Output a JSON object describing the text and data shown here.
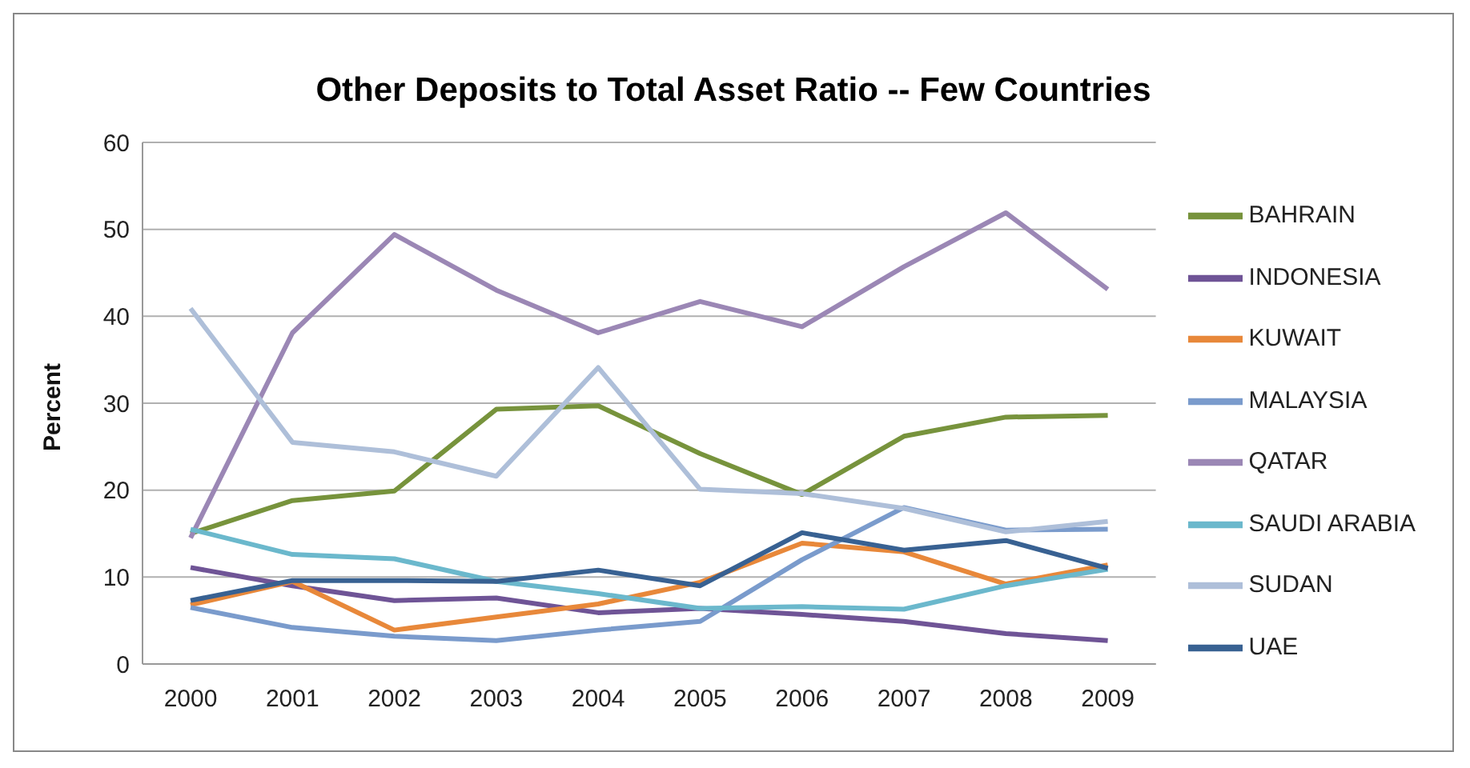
{
  "chart_data": {
    "type": "line",
    "title": "Other Deposits to Total Asset Ratio -- Few Countries",
    "ylabel": "Percent",
    "categories": [
      "2000",
      "2001",
      "2002",
      "2003",
      "2004",
      "2005",
      "2006",
      "2007",
      "2008",
      "2009"
    ],
    "series": [
      {
        "name": "BAHRAIN",
        "color": "#77933c",
        "values": [
          15,
          18.8,
          19.9,
          29.3,
          29.7,
          24.2,
          19.5,
          26.2,
          28.4,
          28.6
        ]
      },
      {
        "name": "INDONESIA",
        "color": "#6f5496",
        "values": [
          11.1,
          9,
          7.3,
          7.6,
          5.9,
          6.4,
          5.7,
          4.9,
          3.5,
          2.7
        ]
      },
      {
        "name": "KUWAIT",
        "color": "#e8883a",
        "values": [
          6.8,
          9.5,
          3.9,
          5.4,
          6.9,
          9.4,
          13.9,
          12.9,
          9.2,
          11.4
        ]
      },
      {
        "name": "MALAYSIA",
        "color": "#7a9bcc",
        "values": [
          6.5,
          4.2,
          3.2,
          2.7,
          3.9,
          4.9,
          12,
          18,
          15.4,
          15.5
        ]
      },
      {
        "name": "QATAR",
        "color": "#9b87b5",
        "values": [
          14.5,
          38.1,
          49.4,
          43,
          38.1,
          41.7,
          38.8,
          45.7,
          51.9,
          43.1
        ]
      },
      {
        "name": "SAUDI ARABIA",
        "color": "#6bb8cc",
        "values": [
          15.5,
          12.6,
          12.1,
          9.5,
          8.1,
          6.4,
          6.6,
          6.3,
          9,
          10.9
        ]
      },
      {
        "name": "SUDAN",
        "color": "#aebfd9",
        "values": [
          40.9,
          25.5,
          24.4,
          21.6,
          34.1,
          20.1,
          19.6,
          17.9,
          15.2,
          16.4
        ]
      },
      {
        "name": "UAE",
        "color": "#386192",
        "values": [
          7.3,
          9.6,
          9.6,
          9.5,
          10.8,
          9,
          15.1,
          13.1,
          14.2,
          11
        ]
      }
    ],
    "ylim": [
      0,
      60
    ],
    "yticks": [
      0,
      10,
      20,
      30,
      40,
      50,
      60
    ],
    "grid": "y",
    "legend": "right",
    "marker": "none",
    "line_style": "solid"
  }
}
